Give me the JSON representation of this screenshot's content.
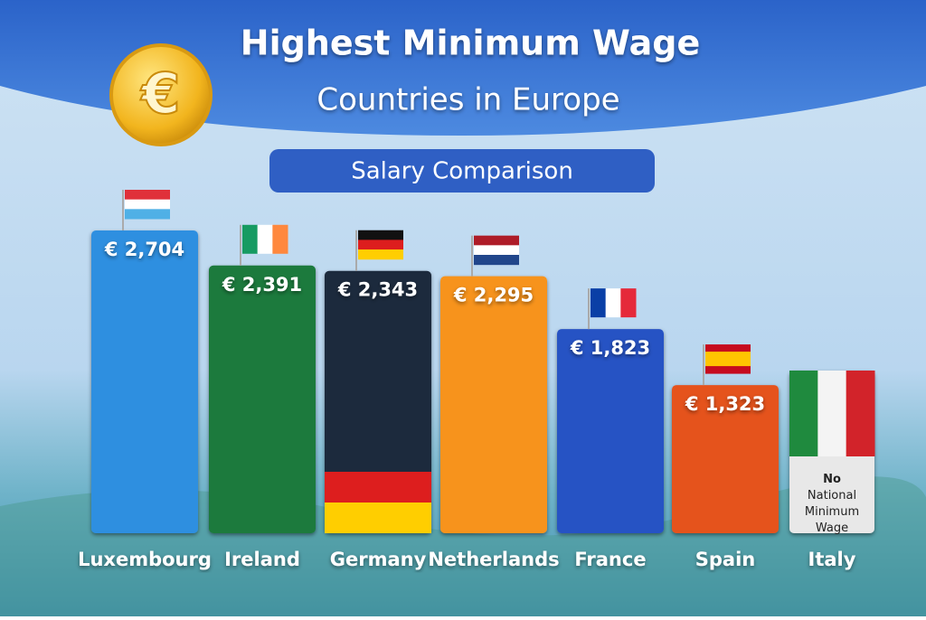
{
  "chart_data": {
    "type": "bar",
    "title": "Highest Minimum Wage",
    "subtitle": "Countries in Europe",
    "label": "Salary Comparison",
    "categories": [
      "Luxembourg",
      "Ireland",
      "Germany",
      "Netherlands",
      "France",
      "Spain",
      "Italy"
    ],
    "values": [
      2704,
      2391,
      2343,
      2295,
      1823,
      1323,
      null
    ],
    "value_labels": [
      "€ 2,704",
      "€ 2,391",
      "€ 2,343",
      "€ 2,295",
      "€ 1,823",
      "€ 1,323",
      null
    ],
    "colors": [
      "#2f8fe0",
      "#1f7a3e",
      "#1f2b3d",
      "#f7931e",
      "#2752c4",
      "#e5531f",
      "#e8e8e8"
    ],
    "note": "No National Minimum Wage"
  }
}
